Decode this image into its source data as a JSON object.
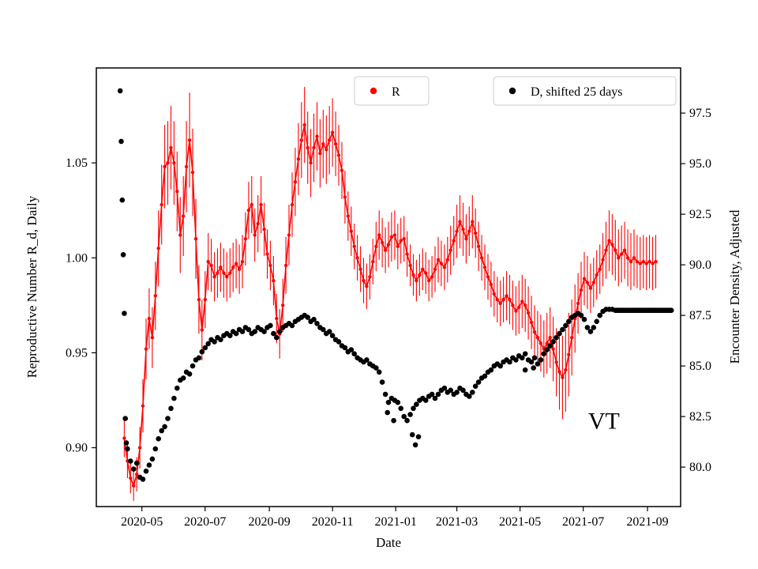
{
  "figure": {
    "background": "#ffffff"
  },
  "chart_data": {
    "type": "line+scatter",
    "title": "",
    "xlabel": "Date",
    "grid": false,
    "legend_position": "top",
    "x_range": [
      "2020-03-18",
      "2021-10-03"
    ],
    "x_ticks": [
      {
        "label": "2020-05",
        "date": "2020-05-01"
      },
      {
        "label": "2020-07",
        "date": "2020-07-01"
      },
      {
        "label": "2020-09",
        "date": "2020-09-01"
      },
      {
        "label": "2020-11",
        "date": "2020-11-01"
      },
      {
        "label": "2021-01",
        "date": "2021-01-01"
      },
      {
        "label": "2021-03",
        "date": "2021-03-01"
      },
      {
        "label": "2021-05",
        "date": "2021-05-01"
      },
      {
        "label": "2021-07",
        "date": "2021-07-01"
      },
      {
        "label": "2021-09",
        "date": "2021-09-01"
      }
    ],
    "left_axis": {
      "label": "Reproductive Number R_d, Daily",
      "color": "#ff0000",
      "range": [
        0.869,
        1.1
      ],
      "ticks": [
        {
          "label": "0.90",
          "value": 0.9
        },
        {
          "label": "0.95",
          "value": 0.95
        },
        {
          "label": "1.00",
          "value": 1.0
        },
        {
          "label": "1.05",
          "value": 1.05
        }
      ]
    },
    "right_axis": {
      "label": "Encounter Density, Adjusted",
      "color": "#000000",
      "range": [
        78.05,
        99.73
      ],
      "ticks": [
        {
          "label": "80.0",
          "value": 80.0
        },
        {
          "label": "82.5",
          "value": 82.5
        },
        {
          "label": "85.0",
          "value": 85.0
        },
        {
          "label": "87.5",
          "value": 87.5
        },
        {
          "label": "90.0",
          "value": 90.0
        },
        {
          "label": "92.5",
          "value": 92.5
        },
        {
          "label": "95.0",
          "value": 95.0
        },
        {
          "label": "97.5",
          "value": 97.5
        }
      ]
    },
    "series": [
      {
        "name": "R",
        "axis": "left",
        "color": "#ff0000",
        "style": "line_with_errorbars",
        "marker": "dot",
        "start": "2020-04-14",
        "step_days": 3,
        "y": [
          0.905,
          0.893,
          0.884,
          0.88,
          0.886,
          0.9,
          0.922,
          0.952,
          0.968,
          0.958,
          0.98,
          1.005,
          1.028,
          1.048,
          1.05,
          1.058,
          1.05,
          1.035,
          1.012,
          1.022,
          1.048,
          1.062,
          1.045,
          1.01,
          0.978,
          0.962,
          0.978,
          0.998,
          0.996,
          0.99,
          0.992,
          0.995,
          0.992,
          0.99,
          0.992,
          0.995,
          0.997,
          0.994,
          0.998,
          1.01,
          1.025,
          1.028,
          1.012,
          1.018,
          1.028,
          1.015,
          1.002,
          0.996,
          0.988,
          0.968,
          0.96,
          0.975,
          0.996,
          1.012,
          1.028,
          1.04,
          1.052,
          1.062,
          1.07,
          1.058,
          1.05,
          1.058,
          1.064,
          1.055,
          1.06,
          1.057,
          1.062,
          1.066,
          1.06,
          1.054,
          1.046,
          1.032,
          1.022,
          1.014,
          1.006,
          1.0,
          0.994,
          0.988,
          0.985,
          0.99,
          0.998,
          1.006,
          1.012,
          1.008,
          1.004,
          1.007,
          1.011,
          1.012,
          1.006,
          1.009,
          1.01,
          1.002,
          0.996,
          0.991,
          0.988,
          0.991,
          0.994,
          0.992,
          0.988,
          0.99,
          0.994,
          0.999,
          0.997,
          0.995,
          0.999,
          1.004,
          1.009,
          1.014,
          1.019,
          1.015,
          1.01,
          1.014,
          1.019,
          1.013,
          1.006,
          1.0,
          0.995,
          0.99,
          0.986,
          0.981,
          0.978,
          0.976,
          0.978,
          0.98,
          0.978,
          0.975,
          0.972,
          0.974,
          0.977,
          0.975,
          0.971,
          0.966,
          0.961,
          0.958,
          0.955,
          0.952,
          0.955,
          0.958,
          0.952,
          0.945,
          0.94,
          0.937,
          0.941,
          0.949,
          0.958,
          0.968,
          0.976,
          0.983,
          0.989,
          0.987,
          0.984,
          0.987,
          0.991,
          0.994,
          0.999,
          1.004,
          1.009,
          1.007,
          1.004,
          1.0,
          1.002,
          1.004,
          1.0,
          0.998,
          1.0,
          0.998,
          0.997,
          0.998,
          0.997,
          0.998,
          0.997,
          0.998
        ],
        "err": [
          0.01,
          0.009,
          0.008,
          0.008,
          0.009,
          0.011,
          0.014,
          0.016,
          0.016,
          0.016,
          0.018,
          0.02,
          0.021,
          0.022,
          0.022,
          0.022,
          0.022,
          0.021,
          0.02,
          0.021,
          0.024,
          0.025,
          0.023,
          0.021,
          0.018,
          0.016,
          0.015,
          0.015,
          0.014,
          0.013,
          0.013,
          0.013,
          0.013,
          0.013,
          0.013,
          0.013,
          0.013,
          0.013,
          0.014,
          0.014,
          0.015,
          0.015,
          0.014,
          0.015,
          0.015,
          0.014,
          0.013,
          0.013,
          0.013,
          0.013,
          0.013,
          0.014,
          0.015,
          0.016,
          0.017,
          0.018,
          0.019,
          0.02,
          0.02,
          0.019,
          0.018,
          0.018,
          0.018,
          0.018,
          0.018,
          0.018,
          0.018,
          0.018,
          0.017,
          0.016,
          0.015,
          0.014,
          0.013,
          0.013,
          0.012,
          0.012,
          0.012,
          0.012,
          0.012,
          0.012,
          0.012,
          0.013,
          0.013,
          0.013,
          0.012,
          0.012,
          0.013,
          0.013,
          0.012,
          0.012,
          0.012,
          0.012,
          0.011,
          0.011,
          0.011,
          0.011,
          0.011,
          0.011,
          0.011,
          0.011,
          0.012,
          0.012,
          0.012,
          0.012,
          0.012,
          0.013,
          0.013,
          0.014,
          0.014,
          0.014,
          0.013,
          0.013,
          0.014,
          0.013,
          0.013,
          0.012,
          0.012,
          0.012,
          0.012,
          0.012,
          0.012,
          0.012,
          0.012,
          0.013,
          0.013,
          0.013,
          0.013,
          0.014,
          0.014,
          0.014,
          0.014,
          0.014,
          0.014,
          0.014,
          0.015,
          0.015,
          0.016,
          0.016,
          0.017,
          0.018,
          0.02,
          0.022,
          0.022,
          0.022,
          0.02,
          0.018,
          0.016,
          0.015,
          0.014,
          0.014,
          0.013,
          0.013,
          0.013,
          0.013,
          0.014,
          0.015,
          0.016,
          0.016,
          0.016,
          0.015,
          0.015,
          0.015,
          0.015,
          0.015,
          0.015,
          0.014,
          0.014,
          0.014,
          0.014,
          0.014,
          0.014,
          0.014
        ]
      },
      {
        "name": "D, shifted 25 days",
        "axis": "right",
        "color": "#000000",
        "style": "scatter",
        "marker": "dot",
        "points_pre": [
          [
            "2020-04-10",
            98.6
          ],
          [
            "2020-04-11",
            96.1
          ],
          [
            "2020-04-12",
            93.2
          ],
          [
            "2020-04-13",
            90.5
          ],
          [
            "2020-04-14",
            87.6
          ],
          [
            "2020-04-15",
            82.4
          ],
          [
            "2020-04-16",
            81.2
          ]
        ],
        "start": "2020-04-17",
        "step_days": 3,
        "y": [
          80.9,
          80.3,
          79.9,
          80.2,
          79.5,
          79.4,
          79.8,
          80.1,
          80.4,
          80.9,
          81.4,
          81.8,
          82.0,
          82.4,
          82.9,
          83.4,
          83.9,
          84.3,
          84.4,
          84.7,
          84.6,
          85.0,
          85.3,
          85.4,
          85.7,
          85.9,
          86.1,
          86.3,
          86.2,
          86.4,
          86.3,
          86.5,
          86.6,
          86.5,
          86.7,
          86.6,
          86.8,
          86.7,
          86.9,
          86.8,
          86.6,
          86.7,
          86.9,
          86.8,
          86.7,
          86.9,
          87.0,
          86.6,
          86.4,
          86.7,
          86.9,
          87.0,
          87.1,
          87.0,
          87.2,
          87.3,
          87.4,
          87.5,
          87.4,
          87.2,
          87.3,
          87.1,
          86.9,
          86.8,
          86.6,
          86.7,
          86.5,
          86.3,
          86.2,
          86.0,
          85.9,
          85.7,
          85.8,
          85.6,
          85.4,
          85.3,
          85.2,
          85.3,
          85.1,
          85.0,
          84.9,
          84.7,
          84.2,
          83.6,
          83.2,
          83.4,
          83.3,
          83.2,
          82.9,
          82.5,
          82.3,
          82.6,
          82.9,
          83.1,
          83.3,
          83.4,
          83.3,
          83.5,
          83.6,
          83.4,
          83.6,
          83.8,
          83.9,
          83.7,
          83.8,
          83.6,
          83.7,
          83.9,
          83.8,
          83.6,
          83.5,
          83.7,
          84.0,
          84.2,
          84.4,
          84.5,
          84.7,
          84.8,
          85.0,
          85.1,
          85.0,
          85.2,
          85.3,
          85.2,
          85.4,
          85.3,
          85.5,
          85.4,
          85.6,
          85.3,
          85.2,
          85.4,
          85.1,
          85.3,
          85.6,
          85.8,
          86.0,
          86.2,
          86.4,
          86.6,
          86.8,
          87.0,
          87.2,
          87.4,
          87.5,
          87.6,
          87.5,
          87.3,
          86.9,
          86.7,
          86.9,
          87.2,
          87.5,
          87.7,
          87.8,
          87.8,
          87.8
        ],
        "outliers": [
          [
            "2020-12-24",
            82.7
          ],
          [
            "2020-12-30",
            82.3
          ],
          [
            "2021-01-17",
            81.6
          ],
          [
            "2021-01-20",
            81.1
          ],
          [
            "2021-01-23",
            81.5
          ],
          [
            "2021-05-06",
            84.8
          ],
          [
            "2021-05-14",
            84.9
          ]
        ],
        "tail": {
          "start": "2021-08-01",
          "end": "2021-09-24",
          "step_days": 1,
          "value": 87.75
        }
      }
    ],
    "annotations": [
      {
        "text": "VT",
        "x": "2021-07-21",
        "y": 81.9,
        "axis": "right"
      }
    ]
  }
}
